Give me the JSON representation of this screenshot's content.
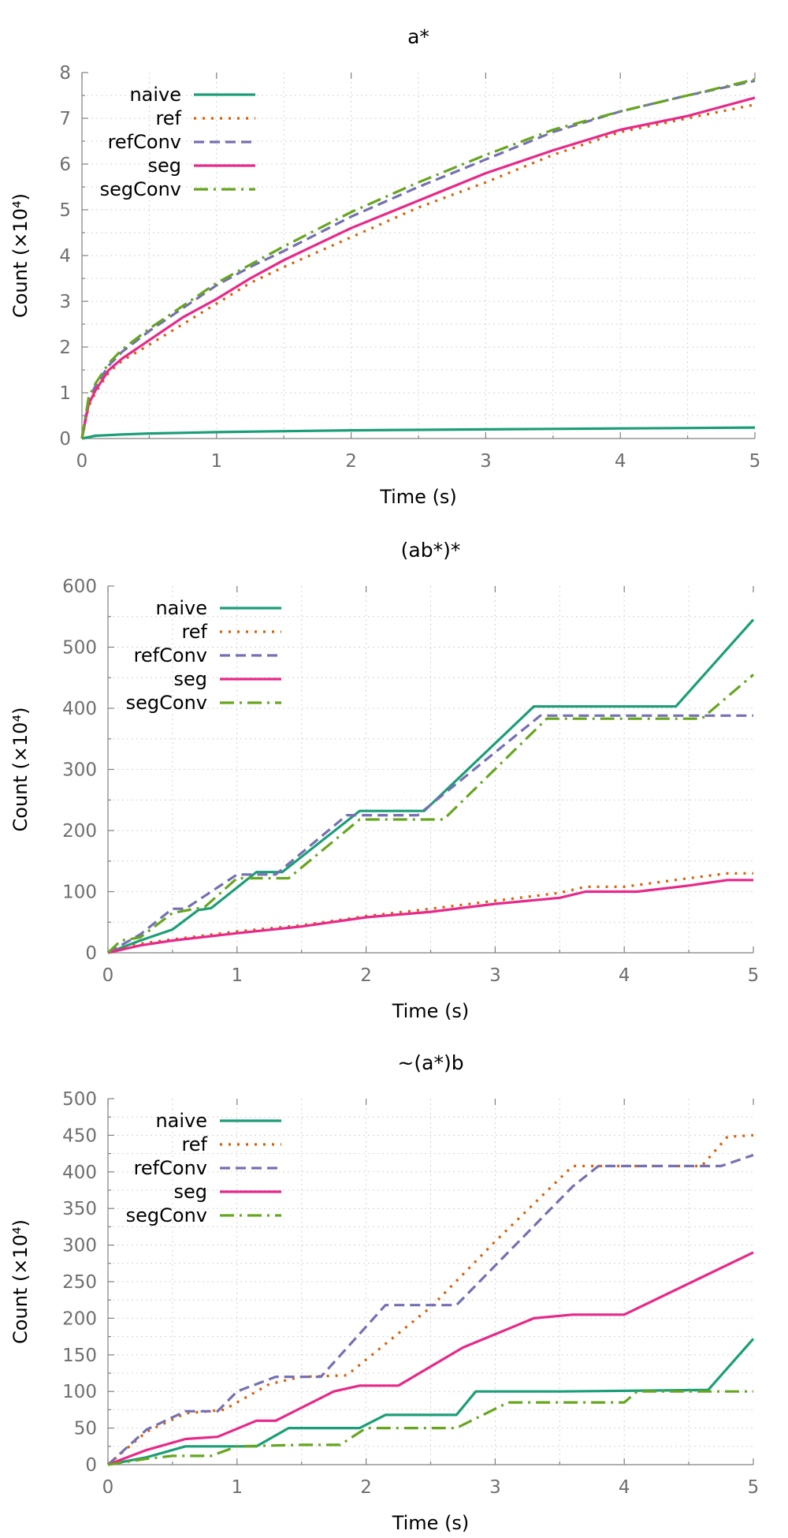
{
  "chart_data": [
    {
      "type": "line",
      "title": "a*",
      "xlabel": "Time (s)",
      "ylabel": "Count (×10⁴)",
      "xlim": [
        0,
        5
      ],
      "ylim": [
        0,
        8
      ],
      "xticks": [
        0,
        1,
        2,
        3,
        4,
        5
      ],
      "yticks": [
        0,
        1,
        2,
        3,
        4,
        5,
        6,
        7,
        8
      ],
      "grid": true,
      "legend_position": "top-left",
      "series": [
        {
          "name": "naive",
          "color": "#1b9e77",
          "style": "solid",
          "x": [
            0,
            0.1,
            0.3,
            0.5,
            1,
            1.5,
            2,
            2.5,
            3,
            3.5,
            4,
            4.5,
            5
          ],
          "y": [
            0,
            0.06,
            0.09,
            0.11,
            0.14,
            0.16,
            0.18,
            0.19,
            0.2,
            0.21,
            0.22,
            0.23,
            0.24
          ]
        },
        {
          "name": "ref",
          "color": "#d95f02",
          "style": "dotted",
          "x": [
            0,
            0.05,
            0.1,
            0.2,
            0.3,
            0.5,
            0.75,
            1,
            1.25,
            1.5,
            2,
            2.5,
            3,
            3.5,
            4,
            4.5,
            5
          ],
          "y": [
            0,
            0.7,
            1.0,
            1.45,
            1.7,
            2.05,
            2.5,
            2.95,
            3.4,
            3.75,
            4.4,
            5.05,
            5.6,
            6.2,
            6.7,
            7.0,
            7.3
          ]
        },
        {
          "name": "refConv",
          "color": "#7570b3",
          "style": "dashed",
          "x": [
            0,
            0.05,
            0.1,
            0.2,
            0.3,
            0.5,
            0.75,
            1,
            1.25,
            1.5,
            2,
            2.5,
            3,
            3.5,
            4,
            4.5,
            5
          ],
          "y": [
            0,
            0.85,
            1.15,
            1.6,
            1.9,
            2.35,
            2.85,
            3.35,
            3.75,
            4.1,
            4.85,
            5.5,
            6.1,
            6.7,
            7.15,
            7.5,
            7.82
          ]
        },
        {
          "name": "seg",
          "color": "#e7298a",
          "style": "solid",
          "x": [
            0,
            0.05,
            0.1,
            0.2,
            0.3,
            0.5,
            0.75,
            1,
            1.25,
            1.5,
            2,
            2.5,
            3,
            3.5,
            4,
            4.5,
            5
          ],
          "y": [
            0,
            0.75,
            1.05,
            1.5,
            1.75,
            2.15,
            2.65,
            3.05,
            3.5,
            3.9,
            4.6,
            5.2,
            5.8,
            6.3,
            6.75,
            7.05,
            7.45
          ]
        },
        {
          "name": "segConv",
          "color": "#66a61e",
          "style": "dashdot",
          "x": [
            0,
            0.05,
            0.1,
            0.2,
            0.3,
            0.5,
            0.75,
            1,
            1.25,
            1.5,
            2,
            2.5,
            3,
            3.5,
            4,
            4.5,
            5
          ],
          "y": [
            0,
            0.9,
            1.2,
            1.65,
            1.95,
            2.4,
            2.9,
            3.4,
            3.8,
            4.2,
            4.95,
            5.6,
            6.2,
            6.75,
            7.15,
            7.5,
            7.85
          ]
        }
      ]
    },
    {
      "type": "line",
      "title": "(ab*)*",
      "xlabel": "Time (s)",
      "ylabel": "Count (×10⁴)",
      "xlim": [
        0,
        5
      ],
      "ylim": [
        0,
        600
      ],
      "xticks": [
        0,
        1,
        2,
        3,
        4,
        5
      ],
      "yticks": [
        0,
        100,
        200,
        300,
        400,
        500,
        600
      ],
      "grid": true,
      "legend_position": "top-left",
      "series": [
        {
          "name": "naive",
          "color": "#1b9e77",
          "style": "solid",
          "x": [
            0,
            0.25,
            0.5,
            0.7,
            0.8,
            1.15,
            1.35,
            1.95,
            2.45,
            3.3,
            4.4,
            5
          ],
          "y": [
            0,
            20,
            38,
            70,
            73,
            132,
            132,
            232,
            232,
            403,
            403,
            545
          ]
        },
        {
          "name": "ref",
          "color": "#d95f02",
          "style": "dotted",
          "x": [
            0,
            0.25,
            0.5,
            1,
            1.5,
            2,
            2.5,
            3,
            3.5,
            3.7,
            4,
            4.5,
            4.8,
            5
          ],
          "y": [
            0,
            15,
            22,
            35,
            45,
            60,
            72,
            85,
            98,
            108,
            108,
            122,
            130,
            130
          ]
        },
        {
          "name": "refConv",
          "color": "#7570b3",
          "style": "dashed",
          "x": [
            0,
            0.25,
            0.5,
            0.6,
            1.0,
            1.3,
            1.85,
            2.4,
            3.35,
            5
          ],
          "y": [
            0,
            30,
            72,
            72,
            128,
            128,
            225,
            225,
            388,
            388
          ]
        },
        {
          "name": "seg",
          "color": "#e7298a",
          "style": "solid",
          "x": [
            0,
            0.25,
            0.5,
            1,
            1.5,
            2,
            2.5,
            3,
            3.5,
            3.7,
            4.1,
            4.5,
            4.8,
            5
          ],
          "y": [
            0,
            12,
            20,
            32,
            43,
            58,
            67,
            80,
            90,
            100,
            100,
            110,
            119,
            119
          ]
        },
        {
          "name": "segConv",
          "color": "#66a61e",
          "style": "dashdot",
          "x": [
            0,
            0.1,
            0.25,
            0.5,
            0.75,
            1,
            1.4,
            1.95,
            2.6,
            3.4,
            4.6,
            5
          ],
          "y": [
            0,
            20,
            25,
            65,
            75,
            122,
            122,
            218,
            218,
            383,
            383,
            455
          ]
        }
      ]
    },
    {
      "type": "line",
      "title": "~(a*)b",
      "xlabel": "Time (s)",
      "ylabel": "Count (×10⁴)",
      "xlim": [
        0,
        5
      ],
      "ylim": [
        0,
        500
      ],
      "xticks": [
        0,
        1,
        2,
        3,
        4,
        5
      ],
      "yticks": [
        0,
        50,
        100,
        150,
        200,
        250,
        300,
        350,
        400,
        450,
        500
      ],
      "grid": true,
      "legend_position": "top-left",
      "series": [
        {
          "name": "naive",
          "color": "#1b9e77",
          "style": "solid",
          "x": [
            0,
            0.3,
            0.6,
            0.9,
            1.15,
            1.4,
            1.95,
            2.15,
            2.7,
            2.85,
            3.5,
            4.65,
            5
          ],
          "y": [
            0,
            10,
            25,
            25,
            25,
            50,
            50,
            68,
            68,
            100,
            100,
            102,
            172
          ]
        },
        {
          "name": "ref",
          "color": "#d95f02",
          "style": "dotted",
          "x": [
            0,
            0.3,
            0.6,
            0.9,
            1.25,
            1.5,
            1.85,
            2.5,
            3.0,
            3.6,
            4.6,
            4.8,
            5
          ],
          "y": [
            0,
            45,
            70,
            75,
            110,
            120,
            122,
            215,
            305,
            408,
            408,
            448,
            450
          ]
        },
        {
          "name": "refConv",
          "color": "#7570b3",
          "style": "dashed",
          "x": [
            0,
            0.3,
            0.6,
            0.85,
            1.0,
            1.3,
            1.65,
            2.15,
            2.7,
            3.6,
            3.8,
            4.1,
            4.75,
            5
          ],
          "y": [
            0,
            48,
            73,
            73,
            100,
            120,
            120,
            218,
            218,
            380,
            408,
            408,
            408,
            423
          ]
        },
        {
          "name": "seg",
          "color": "#e7298a",
          "style": "solid",
          "x": [
            0,
            0.3,
            0.6,
            0.85,
            1.15,
            1.3,
            1.75,
            1.95,
            2.25,
            2.75,
            3.3,
            3.6,
            4.0,
            5
          ],
          "y": [
            0,
            20,
            35,
            38,
            60,
            60,
            100,
            108,
            108,
            160,
            200,
            205,
            205,
            290
          ]
        },
        {
          "name": "segConv",
          "color": "#66a61e",
          "style": "dashdot",
          "x": [
            0,
            0.3,
            0.5,
            0.8,
            1.0,
            1.5,
            1.8,
            2.0,
            2.7,
            3.1,
            3.5,
            4.0,
            4.1,
            4.6,
            5
          ],
          "y": [
            0,
            8,
            12,
            12,
            25,
            27,
            27,
            50,
            50,
            85,
            85,
            85,
            100,
            100,
            100
          ]
        }
      ]
    }
  ]
}
